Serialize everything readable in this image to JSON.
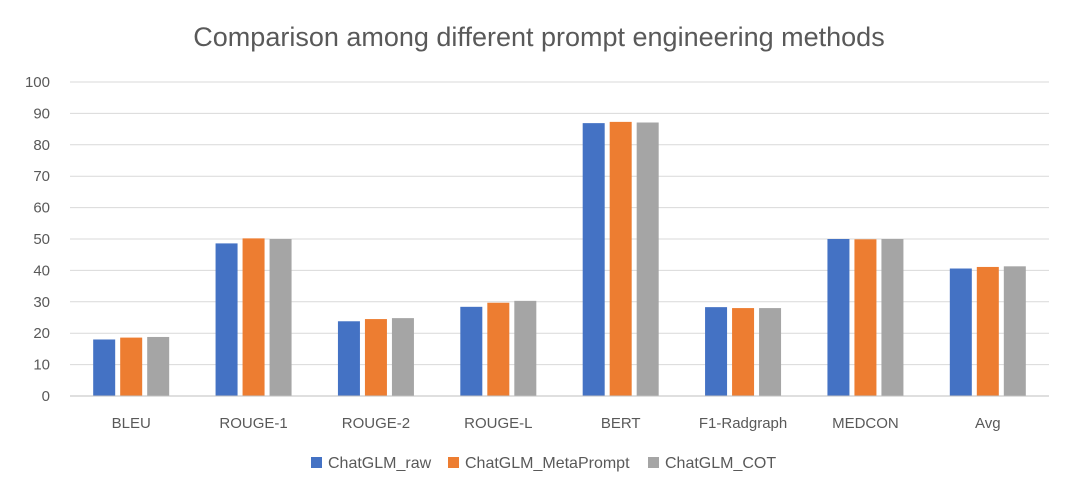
{
  "chart_data": {
    "type": "bar",
    "title": "Comparison among different prompt engineering methods",
    "xlabel": "",
    "ylabel": "",
    "ylim": [
      0,
      100
    ],
    "yticks": [
      0,
      10,
      20,
      30,
      40,
      50,
      60,
      70,
      80,
      90,
      100
    ],
    "grid": true,
    "legend_position": "bottom",
    "categories": [
      "BLEU",
      "ROUGE-1",
      "ROUGE-2",
      "ROUGE-L",
      "BERT",
      "F1-Radgraph",
      "MEDCON",
      "Avg"
    ],
    "series": [
      {
        "name": "ChatGLM_raw",
        "color": "#4472c4",
        "values": [
          18.0,
          48.6,
          23.8,
          28.4,
          86.9,
          28.3,
          50.0,
          40.6
        ]
      },
      {
        "name": "ChatGLM_MetaPrompt",
        "color": "#ed7d31",
        "values": [
          18.6,
          50.2,
          24.5,
          29.7,
          87.3,
          28.0,
          49.9,
          41.1
        ]
      },
      {
        "name": "ChatGLM_COT",
        "color": "#a5a5a5",
        "values": [
          18.8,
          50.0,
          24.8,
          30.3,
          87.1,
          28.0,
          50.0,
          41.3
        ]
      }
    ]
  }
}
